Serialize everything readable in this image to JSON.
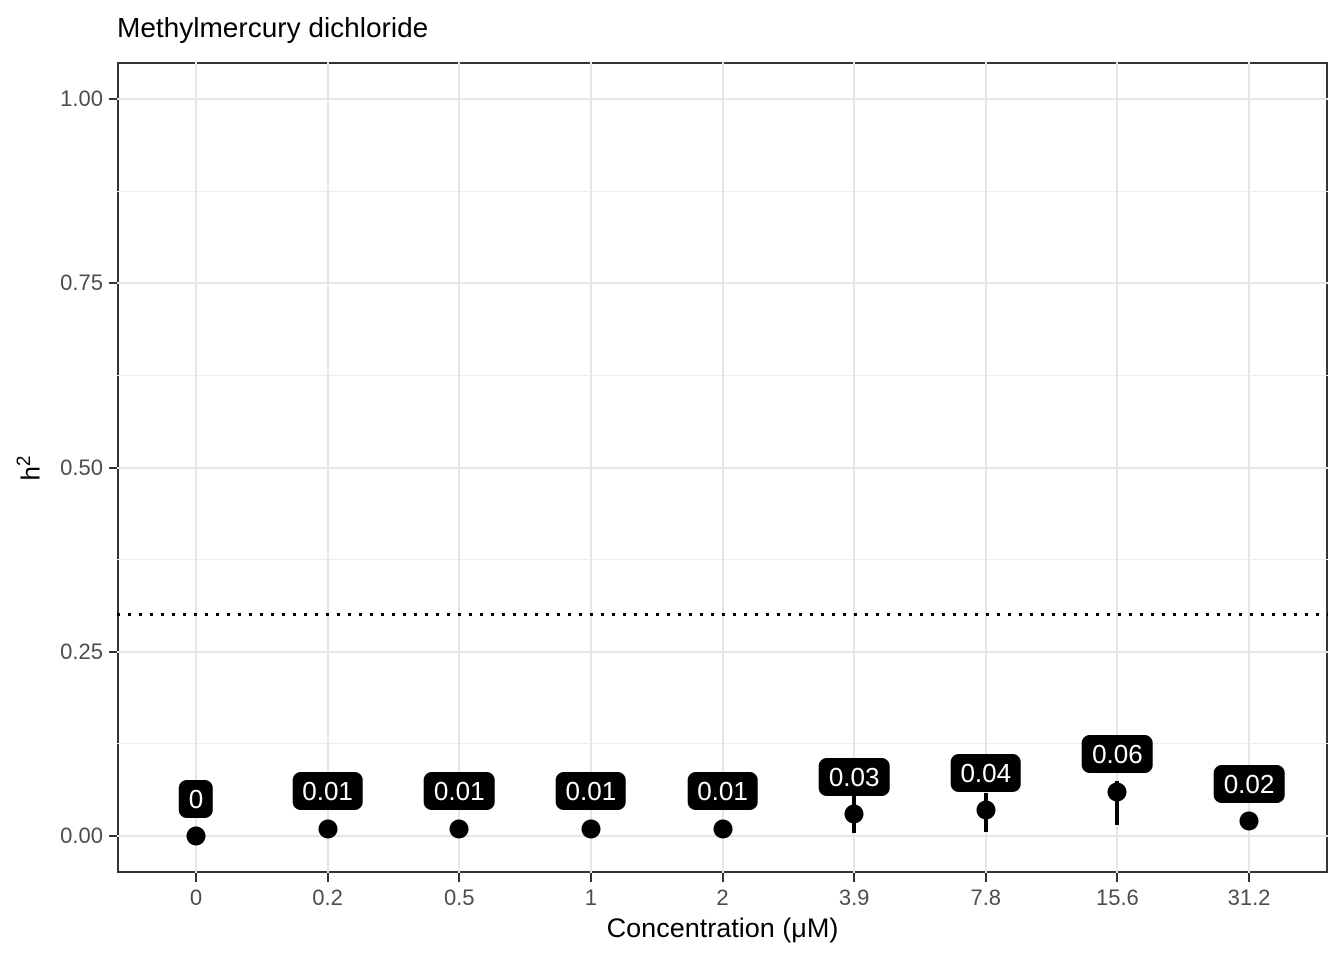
{
  "chart_data": {
    "type": "scatter",
    "title": "Methylmercury dichloride",
    "xlabel": "Concentration (μM)",
    "ylabel": "h²",
    "ylabel_base": "h",
    "ylabel_exponent": "2",
    "categories": [
      "0",
      "0.2",
      "0.5",
      "1",
      "2",
      "3.9",
      "7.8",
      "15.6",
      "31.2"
    ],
    "points": [
      {
        "category": "0",
        "value": 0,
        "label": "0",
        "error_low": null,
        "error_high": null
      },
      {
        "category": "0.2",
        "value": 0.01,
        "label": "0.01",
        "error_low": null,
        "error_high": null
      },
      {
        "category": "0.5",
        "value": 0.01,
        "label": "0.01",
        "error_low": null,
        "error_high": null
      },
      {
        "category": "1",
        "value": 0.01,
        "label": "0.01",
        "error_low": null,
        "error_high": null
      },
      {
        "category": "2",
        "value": 0.01,
        "label": "0.01",
        "error_low": null,
        "error_high": null
      },
      {
        "category": "3.9",
        "value": 0.03,
        "label": "0.03",
        "error_low": 0.004,
        "error_high": 0.058
      },
      {
        "category": "7.8",
        "value": 0.035,
        "label": "0.04",
        "error_low": 0.005,
        "error_high": 0.058
      },
      {
        "category": "15.6",
        "value": 0.06,
        "label": "0.06",
        "error_low": 0.015,
        "error_high": 0.075
      },
      {
        "category": "31.2",
        "value": 0.02,
        "label": "0.02",
        "error_low": null,
        "error_high": null
      }
    ],
    "y_major_ticks": [
      {
        "value": 0.0,
        "label": "0.00"
      },
      {
        "value": 0.25,
        "label": "0.25"
      },
      {
        "value": 0.5,
        "label": "0.50"
      },
      {
        "value": 0.75,
        "label": "0.75"
      },
      {
        "value": 1.0,
        "label": "1.00"
      }
    ],
    "y_minor_ticks": [
      0.125,
      0.375,
      0.625,
      0.875
    ],
    "ylim": [
      -0.05,
      1.05
    ],
    "reference_line": {
      "value": 0.3,
      "linetype": "dotted",
      "color": "#000000"
    },
    "grid": true,
    "legend": false,
    "colors": {
      "point": "#000000",
      "error_bar": "#000000",
      "label_bg": "#000000",
      "label_text": "#ffffff",
      "grid_major": "#e6e6e6",
      "grid_minor": "#ededed",
      "panel_border": "#333333",
      "axis_text": "#4d4d4d",
      "axis_title": "#000000"
    }
  }
}
